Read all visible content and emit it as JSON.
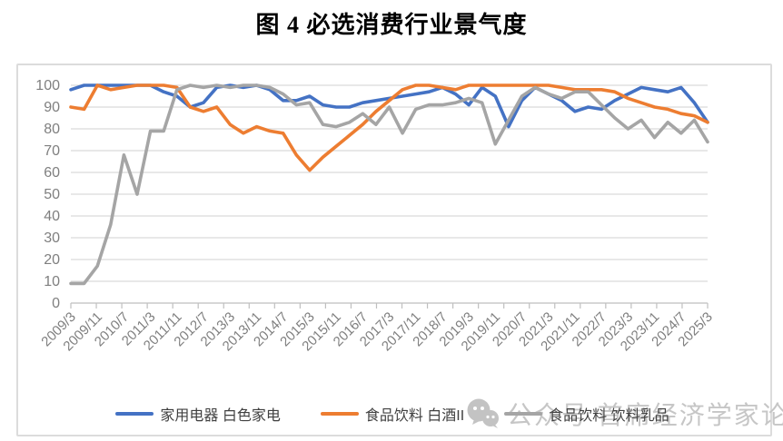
{
  "title": "图 4 必选消费行业景气度",
  "watermark": {
    "text": "公众号 首席经济学家论坛",
    "icon": "wechat-icon"
  },
  "colors": {
    "series_blue": "#4472C4",
    "series_orange": "#ED7D31",
    "series_gray": "#A5A5A5",
    "gridline": "#D9D9D9",
    "axis_line": "#BFBFBF",
    "tick_label": "#7F7F7F",
    "frame_border": "#DCDCDC",
    "watermark_gray": "#C6C6C6"
  },
  "chart_data": {
    "type": "line",
    "title": "图 4 必选消费行业景气度",
    "xlabel": "",
    "ylabel": "",
    "ylim": [
      0,
      100
    ],
    "y_ticks": [
      0,
      10,
      20,
      30,
      40,
      50,
      60,
      70,
      80,
      90,
      100
    ],
    "grid": "horizontal",
    "legend_position": "bottom",
    "x": [
      "2009/3",
      "2009/7",
      "2009/11",
      "2010/3",
      "2010/7",
      "2010/11",
      "2011/3",
      "2011/7",
      "2011/11",
      "2012/3",
      "2012/7",
      "2012/11",
      "2013/3",
      "2013/7",
      "2013/11",
      "2014/3",
      "2014/7",
      "2014/11",
      "2015/3",
      "2015/7",
      "2015/11",
      "2016/3",
      "2016/7",
      "2016/11",
      "2017/3",
      "2017/7",
      "2017/11",
      "2018/3",
      "2018/7",
      "2018/11",
      "2019/3",
      "2019/7",
      "2019/11",
      "2020/3",
      "2020/7",
      "2020/11",
      "2021/3",
      "2021/7",
      "2021/11",
      "2022/3",
      "2022/7",
      "2022/11",
      "2023/3",
      "2023/7",
      "2023/11",
      "2024/3",
      "2024/7",
      "2024/11",
      "2025/3"
    ],
    "tick_labels": [
      "2009/3",
      "2009/11",
      "2010/7",
      "2011/3",
      "2011/11",
      "2012/7",
      "2013/3",
      "2013/11",
      "2014/7",
      "2015/3",
      "2015/11",
      "2016/7",
      "2017/3",
      "2017/11",
      "2018/7",
      "2019/3",
      "2019/11",
      "2020/7",
      "2021/3",
      "2021/11",
      "2022/7",
      "2023/3",
      "2023/11",
      "2024/7",
      "2025/3"
    ],
    "series": [
      {
        "name": "家用电器 白色家电",
        "color": "#4472C4",
        "values": [
          98,
          100,
          100,
          100,
          100,
          100,
          100,
          97,
          95,
          90,
          92,
          99,
          100,
          99,
          100,
          98,
          93,
          93,
          95,
          91,
          90,
          90,
          92,
          93,
          94,
          95,
          96,
          97,
          99,
          96,
          91,
          99,
          95,
          81,
          93,
          99,
          96,
          93,
          88,
          90,
          89,
          93,
          96,
          99,
          98,
          97,
          99,
          92,
          83
        ]
      },
      {
        "name": "食品饮料 白酒II",
        "color": "#ED7D31",
        "values": [
          90,
          89,
          100,
          98,
          99,
          100,
          100,
          100,
          99,
          90,
          88,
          90,
          82,
          78,
          81,
          79,
          78,
          68,
          61,
          67,
          72,
          77,
          82,
          88,
          93,
          98,
          100,
          100,
          99,
          98,
          100,
          100,
          100,
          100,
          100,
          100,
          100,
          99,
          98,
          98,
          98,
          97,
          94,
          92,
          90,
          89,
          87,
          86,
          83
        ]
      },
      {
        "name": "食品饮料 饮料乳品",
        "color": "#A5A5A5",
        "values": [
          9,
          9,
          17,
          36,
          68,
          50,
          79,
          79,
          98,
          100,
          99,
          100,
          99,
          100,
          100,
          99,
          96,
          91,
          92,
          82,
          81,
          83,
          87,
          82,
          90,
          78,
          89,
          91,
          91,
          92,
          94,
          92,
          73,
          84,
          95,
          99,
          96,
          94,
          97,
          97,
          91,
          85,
          80,
          84,
          76,
          83,
          78,
          84,
          74
        ]
      }
    ]
  }
}
